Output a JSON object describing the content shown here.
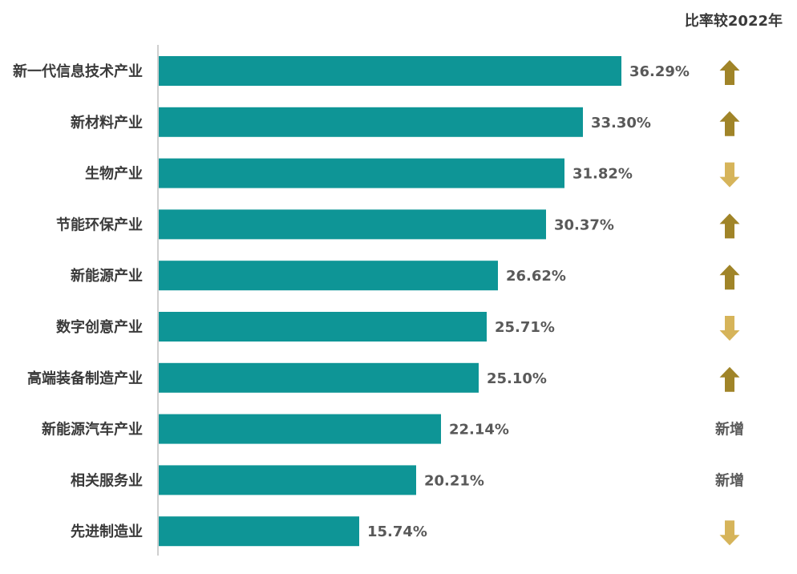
{
  "chart_data": {
    "type": "bar",
    "orientation": "horizontal",
    "comparison_header": "比率较2022年",
    "categories": [
      "新一代信息技术产业",
      "新材料产业",
      "生物产业",
      "节能环保产业",
      "新能源产业",
      "数字创意产业",
      "高端装备制造产业",
      "新能源汽车产业",
      "相关服务业",
      "先进制造业"
    ],
    "values": [
      36.29,
      33.3,
      31.82,
      30.37,
      26.62,
      25.71,
      25.1,
      22.14,
      20.21,
      15.74
    ],
    "value_labels": [
      "36.29%",
      "33.30%",
      "31.82%",
      "30.37%",
      "26.62%",
      "25.71%",
      "25.10%",
      "22.14%",
      "20.21%",
      "15.74%"
    ],
    "comparison": [
      {
        "type": "up"
      },
      {
        "type": "up"
      },
      {
        "type": "down"
      },
      {
        "type": "up"
      },
      {
        "type": "up"
      },
      {
        "type": "down"
      },
      {
        "type": "up"
      },
      {
        "type": "text",
        "label": "新增"
      },
      {
        "type": "text",
        "label": "新增"
      },
      {
        "type": "down"
      }
    ],
    "xlim": [
      0,
      36.29
    ],
    "colors": {
      "bar": "#0e9596",
      "axis": "#bfbfbf",
      "arrow_up": "#a08428",
      "arrow_down": "#d6b45a"
    }
  }
}
